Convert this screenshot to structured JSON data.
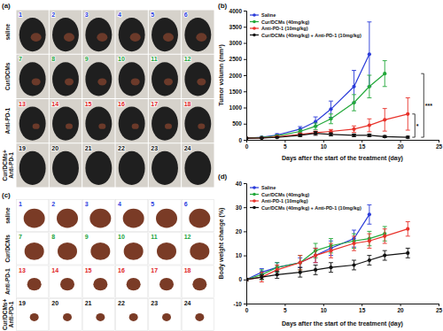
{
  "panels": [
    {
      "label": "(a)",
      "rows": [
        "saline",
        "Cur/DCMs",
        "Anti-PD-1",
        "Cur/DCMs+Anti-PD-1"
      ],
      "row_colors": [
        "#2b3de0",
        "#1aa33a",
        "#e0231e",
        "#111111"
      ],
      "numbers": [
        [
          1,
          2,
          3,
          4,
          5,
          6
        ],
        [
          7,
          8,
          9,
          10,
          11,
          12
        ],
        [
          13,
          14,
          15,
          16,
          17,
          18
        ],
        [
          19,
          20,
          21,
          22,
          23,
          24
        ]
      ]
    },
    {
      "label": "(c)",
      "rows": [
        "saline",
        "Cur/DCMs",
        "Anti-PD-1",
        "Cur/DCMs+Anti-PD-1"
      ],
      "row_colors": [
        "#2b3de0",
        "#1aa33a",
        "#e0231e",
        "#111111"
      ],
      "numbers": [
        [
          1,
          2,
          3,
          4,
          5,
          6
        ],
        [
          7,
          8,
          9,
          10,
          11,
          12
        ],
        [
          13,
          14,
          15,
          16,
          17,
          18
        ],
        [
          19,
          20,
          21,
          22,
          23,
          24
        ]
      ]
    }
  ],
  "chart_data": [
    {
      "type": "line",
      "title": "(b)",
      "x_label": "Days after the start of the treatment (day)",
      "y_label": "Tumor volumn (mm³)",
      "x": [
        0,
        2,
        4,
        7,
        9,
        11,
        14,
        16,
        18,
        21
      ],
      "xlim": [
        0,
        25
      ],
      "xticks": [
        0,
        5,
        10,
        15,
        20,
        25
      ],
      "ylim": [
        0,
        4000
      ],
      "yticks": [
        0,
        500,
        1000,
        1500,
        2000,
        2500,
        3000,
        3500,
        4000
      ],
      "grid": false,
      "legend": "upper left",
      "series": [
        {
          "name": "Saline",
          "color": "#2a3bd9",
          "marker": "circle",
          "line_style": "solid",
          "values": [
            50,
            80,
            150,
            330,
            560,
            950,
            1650,
            2650,
            null,
            null
          ],
          "errors": [
            10,
            20,
            40,
            80,
            150,
            250,
            500,
            1000,
            null,
            null
          ]
        },
        {
          "name": "Cur/DCMs (40mg/kg)",
          "color": "#22a83a",
          "marker": "circle",
          "line_style": "solid",
          "values": [
            50,
            70,
            120,
            260,
            420,
            650,
            1150,
            1650,
            2050,
            null
          ],
          "errors": [
            10,
            15,
            30,
            60,
            100,
            150,
            250,
            350,
            400,
            null
          ]
        },
        {
          "name": "Anti-PD-1 (10mg/kg)",
          "color": "#e8322a",
          "marker": "circle",
          "line_style": "solid",
          "values": [
            50,
            60,
            90,
            170,
            220,
            260,
            330,
            450,
            620,
            800
          ],
          "errors": [
            10,
            10,
            20,
            40,
            50,
            60,
            100,
            200,
            350,
            500
          ]
        },
        {
          "name": "Cur/DCMs (40mg/kg) + Anti-PD-1 (10mg/kg)",
          "color": "#111111",
          "marker": "circle",
          "line_style": "solid",
          "values": [
            50,
            55,
            75,
            140,
            200,
            170,
            140,
            140,
            100,
            80
          ],
          "errors": [
            10,
            10,
            15,
            40,
            60,
            50,
            40,
            40,
            30,
            30
          ]
        }
      ],
      "annotations": [
        {
          "text": "*"
        },
        {
          "text": "***"
        }
      ]
    },
    {
      "type": "line",
      "title": "(d)",
      "x_label": "Days after the start of the treatment (day)",
      "y_label": "Body weight change (%)",
      "x": [
        0,
        2,
        4,
        7,
        9,
        11,
        14,
        16,
        18,
        21
      ],
      "xlim": [
        0,
        25
      ],
      "xticks": [
        0,
        5,
        10,
        15,
        20,
        25
      ],
      "ylim": [
        -10,
        40
      ],
      "yticks": [
        -10,
        0,
        10,
        20,
        30,
        40
      ],
      "grid": false,
      "legend": "upper left",
      "series": [
        {
          "name": "Saline",
          "color": "#2a3bd9",
          "marker": "circle",
          "line_style": "solid",
          "values": [
            0,
            3,
            5,
            7,
            10,
            13,
            17,
            27,
            null,
            null
          ],
          "errors": [
            0.5,
            1.5,
            2,
            2,
            3,
            3,
            3.5,
            4,
            null,
            null
          ]
        },
        {
          "name": "Cur/DCMs (40mg/kg)",
          "color": "#22a83a",
          "marker": "circle",
          "line_style": "solid",
          "values": [
            0,
            2,
            5,
            7,
            12,
            14,
            16,
            17,
            19,
            null
          ],
          "errors": [
            0.5,
            2,
            2,
            3,
            3,
            3,
            3,
            3,
            3,
            null
          ]
        },
        {
          "name": "Anti-PD-1 (10mg/kg)",
          "color": "#e8322a",
          "marker": "circle",
          "line_style": "solid",
          "values": [
            0,
            1,
            4,
            7,
            10,
            12,
            15,
            16,
            18,
            21
          ],
          "errors": [
            0.5,
            2,
            2,
            3,
            3,
            3,
            3,
            3,
            3,
            3
          ]
        },
        {
          "name": "Cur/DCMs (40mg/kg) + Anti-PD-1 (10mg/kg)",
          "color": "#111111",
          "marker": "circle",
          "line_style": "solid",
          "values": [
            0,
            1,
            2,
            3,
            4,
            5,
            6,
            8,
            10,
            11
          ],
          "errors": [
            0.5,
            1,
            1.5,
            2,
            2,
            2,
            2,
            2,
            2,
            2
          ]
        }
      ]
    }
  ]
}
